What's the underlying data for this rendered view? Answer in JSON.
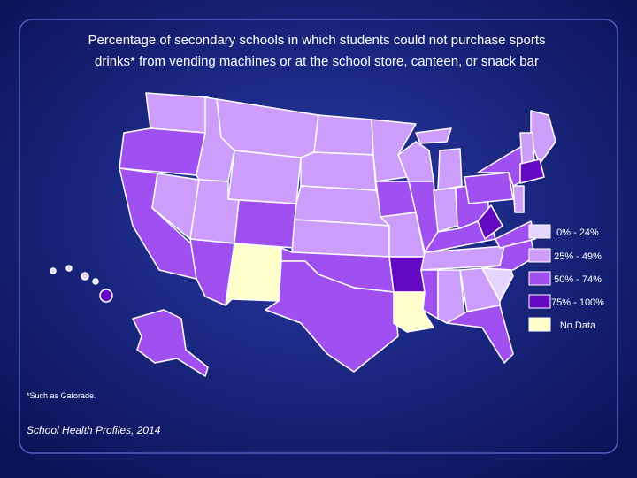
{
  "title_lines": [
    "Percentage of secondary schools in which students could not purchase sports",
    "drinks* from vending machines or at the school store, canteen, or snack bar"
  ],
  "legend": [
    {
      "label": "0% - 24%",
      "color": "#e6d6ff"
    },
    {
      "label": "25% - 49%",
      "color": "#cc9dfb"
    },
    {
      "label": "50% - 74%",
      "color": "#a04ff0"
    },
    {
      "label": "75% - 100%",
      "color": "#6408c4"
    },
    {
      "label": "No Data",
      "color": "#ffffcc"
    }
  ],
  "footnote": "*Such as Gatorade.",
  "source": "School Health Profiles, 2014"
}
